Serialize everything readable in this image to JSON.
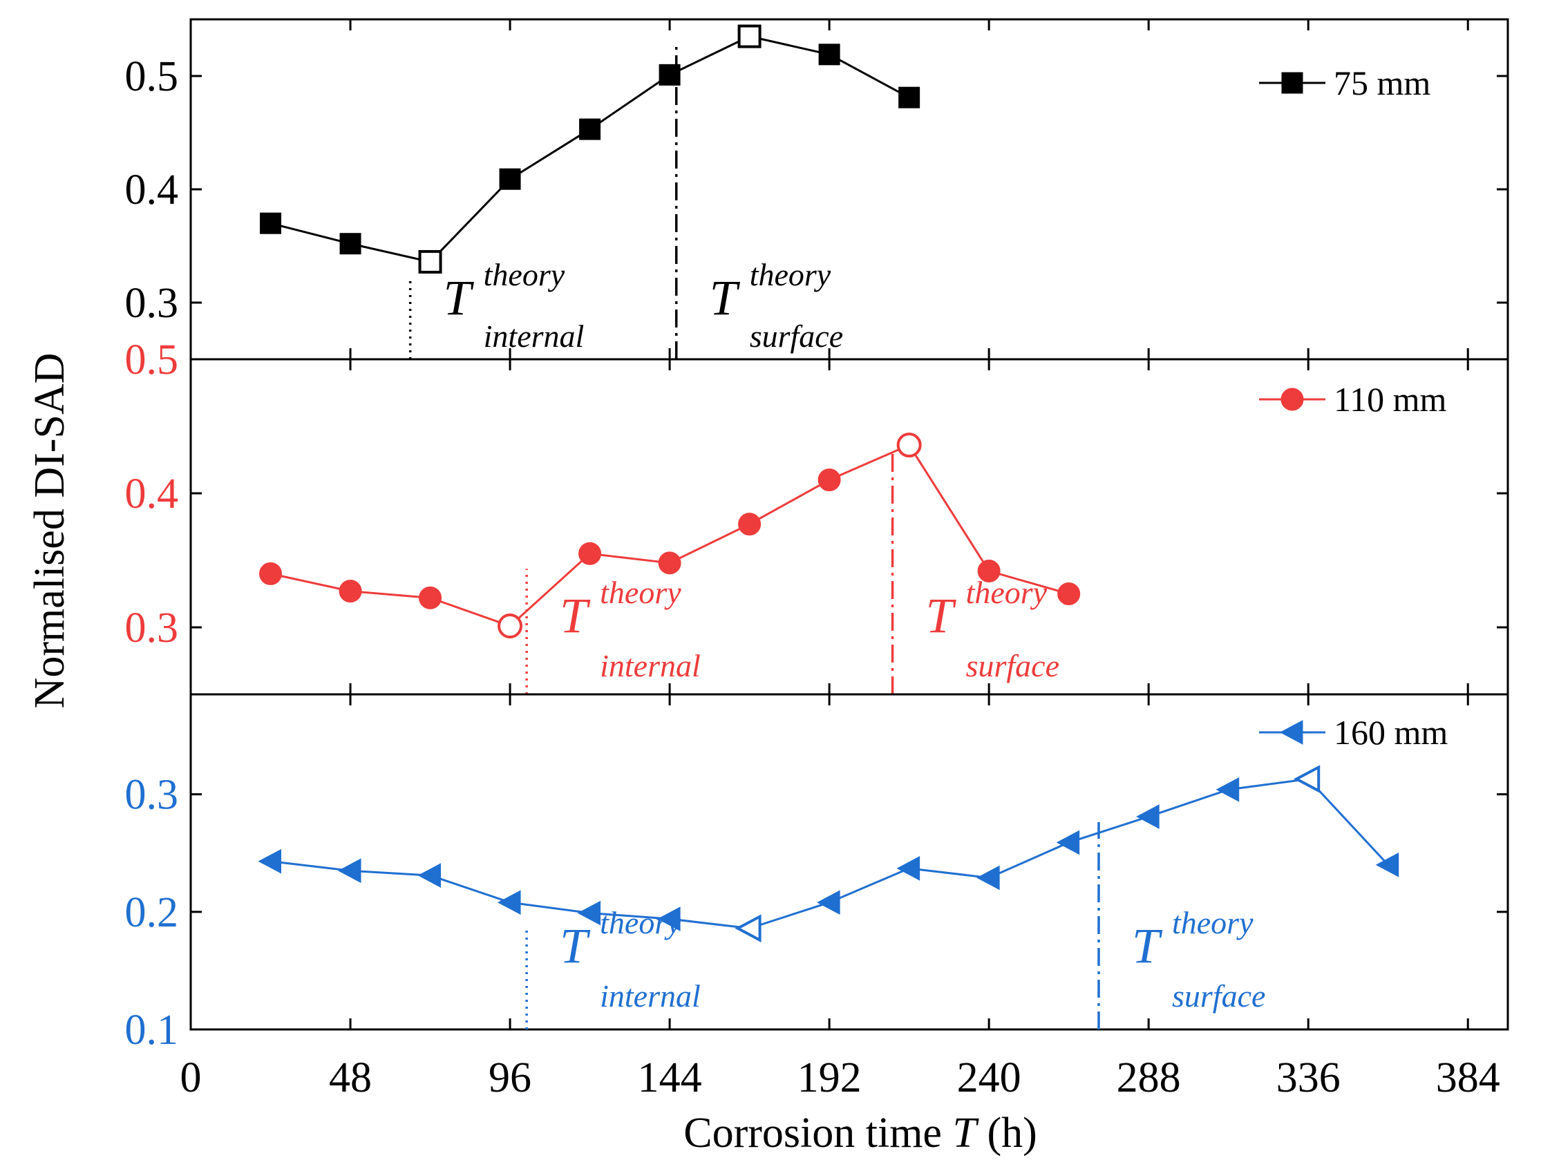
{
  "chart_data": {
    "type": "line",
    "ylabel": "Normalised DI-SAD",
    "xlabel": {
      "prefix": "Corrosion time ",
      "var": "T",
      "suffix": " (h)"
    },
    "xlim": [
      0,
      396
    ],
    "xticks": [
      0,
      48,
      96,
      144,
      192,
      240,
      288,
      336,
      384
    ],
    "annotation_text": {
      "T": "T",
      "sup": "theory",
      "internal": "internal",
      "surface": "surface"
    },
    "panels": [
      {
        "name": "75 mm",
        "color": "#000000",
        "marker": "square",
        "ylim": [
          0.25,
          0.55
        ],
        "yticks": [
          0.3,
          0.4,
          0.5
        ],
        "ytick_labels": [
          "0.3",
          "0.4",
          "0.5"
        ],
        "x": [
          24,
          48,
          72,
          96,
          120,
          144,
          168,
          192,
          216
        ],
        "y": [
          0.37,
          0.352,
          0.336,
          0.409,
          0.453,
          0.501,
          0.535,
          0.519,
          0.481
        ],
        "hollow": [
          72,
          168
        ],
        "internal_x": 66,
        "surface_x": 146
      },
      {
        "name": "110 mm",
        "color": "#ee3b3b",
        "marker": "circle",
        "ylim": [
          0.25,
          0.5
        ],
        "yticks": [
          0.3,
          0.4,
          0.5
        ],
        "ytick_labels": [
          "0.3",
          "0.4",
          "0.5"
        ],
        "x": [
          24,
          48,
          72,
          96,
          120,
          144,
          168,
          192,
          216,
          240,
          264
        ],
        "y": [
          0.34,
          0.327,
          0.322,
          0.301,
          0.355,
          0.348,
          0.377,
          0.41,
          0.436,
          0.342,
          0.325
        ],
        "hollow": [
          96,
          216
        ],
        "internal_x": 101,
        "surface_x": 211
      },
      {
        "name": "160 mm",
        "color": "#1f6fd1",
        "marker": "triangle-left",
        "ylim": [
          0.1,
          0.385
        ],
        "yticks": [
          0.1,
          0.2,
          0.3
        ],
        "ytick_labels": [
          "0.1",
          "0.2",
          "0.3"
        ],
        "x": [
          24,
          48,
          72,
          96,
          120,
          144,
          168,
          192,
          216,
          240,
          264,
          288,
          312,
          336,
          360
        ],
        "y": [
          0.243,
          0.235,
          0.231,
          0.208,
          0.199,
          0.194,
          0.186,
          0.208,
          0.237,
          0.229,
          0.259,
          0.281,
          0.304,
          0.313,
          0.24
        ],
        "hollow": [
          168,
          336
        ],
        "internal_x": 101,
        "surface_x": 273
      }
    ]
  }
}
